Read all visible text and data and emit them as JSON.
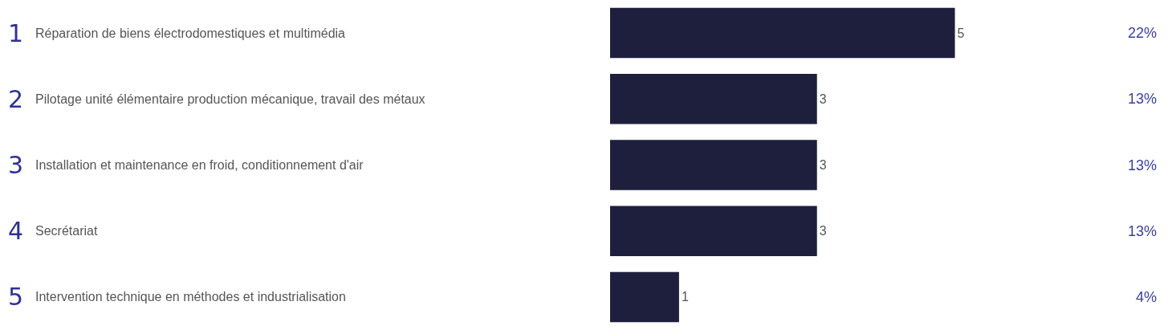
{
  "chart_data": {
    "type": "bar",
    "orientation": "horizontal",
    "categories": [
      "Réparation de biens électrodomestiques et multimédia",
      "Pilotage unité élémentaire production mécanique, travail des métaux",
      "Installation et maintenance en froid, conditionnement d'air",
      "Secrétariat",
      "Intervention technique en méthodes et industrialisation"
    ],
    "values": [
      5,
      3,
      3,
      3,
      1
    ],
    "color": "#1e1f3d",
    "data_labels": true,
    "grid": false,
    "legend": false,
    "annotations": [
      "1",
      "2",
      "3",
      "4",
      "5",
      "22%",
      "13%",
      "13%",
      "13%",
      "4%"
    ]
  }
}
